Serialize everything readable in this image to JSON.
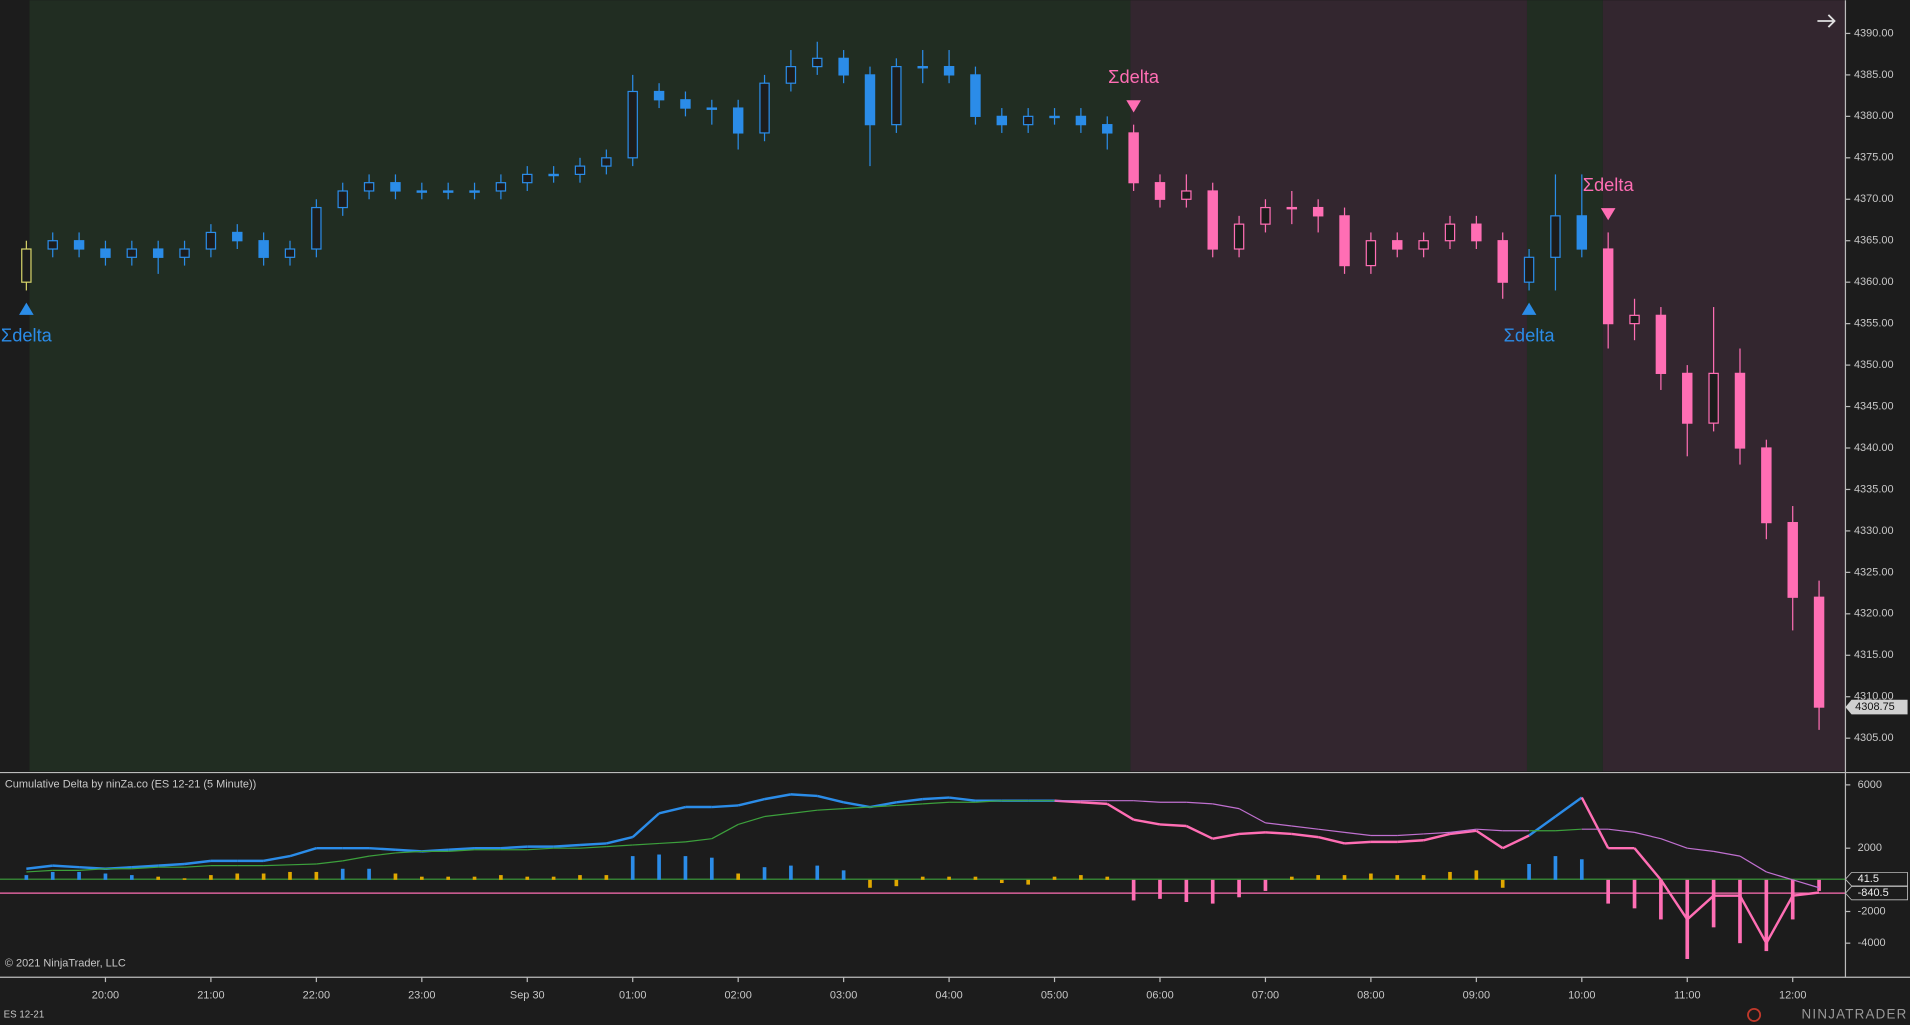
{
  "chart_data": [
    {
      "type": "candlestick",
      "x": [
        19.25,
        19.5,
        19.75,
        20,
        20.25,
        20.5,
        20.75,
        21,
        21.25,
        21.5,
        21.75,
        22,
        22.25,
        22.5,
        22.75,
        23,
        23.25,
        23.5,
        23.75,
        24,
        24.25,
        24.5,
        24.75,
        25,
        25.25,
        25.5,
        25.75,
        26,
        26.25,
        26.5,
        26.75,
        27,
        27.25,
        27.5,
        27.75,
        28,
        28.25,
        28.5,
        28.75,
        29,
        29.25,
        29.5,
        29.75,
        30,
        30.25,
        30.5,
        30.75,
        31,
        31.25,
        31.5,
        31.75,
        32,
        32.25,
        32.5,
        32.75,
        33,
        33.25,
        33.5,
        33.75,
        34,
        34.25,
        34.5,
        34.75,
        35,
        35.25,
        35.5,
        35.75,
        36,
        36.25
      ],
      "open": [
        4360,
        4364,
        4365,
        4364,
        4363,
        4364,
        4363,
        4364,
        4366,
        4365,
        4363,
        4364,
        4369,
        4371,
        4372,
        4371,
        4371,
        4371,
        4371,
        4372,
        4373,
        4373,
        4374,
        4375,
        4383,
        4382,
        4381,
        4381,
        4378,
        4384,
        4386,
        4387,
        4385,
        4379,
        4386,
        4386,
        4385,
        4380,
        4379,
        4380,
        4380,
        4379,
        4378,
        4372,
        4370,
        4371,
        4364,
        4367,
        4369,
        4369,
        4368,
        4362,
        4365,
        4364,
        4365,
        4367,
        4365,
        4360,
        4363,
        4368,
        4364,
        4355,
        4356,
        4349,
        4343,
        4349,
        4340,
        4331,
        4322
      ],
      "high": [
        4365,
        4366,
        4366,
        4365,
        4365,
        4365,
        4365,
        4367,
        4367,
        4366,
        4365,
        4370,
        4372,
        4373,
        4373,
        4372,
        4372,
        4372,
        4373,
        4374,
        4374,
        4375,
        4376,
        4385,
        4384,
        4383,
        4382,
        4382,
        4385,
        4388,
        4389,
        4388,
        4386,
        4387,
        4388,
        4388,
        4386,
        4381,
        4381,
        4381,
        4381,
        4380,
        4379,
        4373,
        4373,
        4372,
        4368,
        4370,
        4371,
        4370,
        4369,
        4366,
        4366,
        4366,
        4368,
        4368,
        4366,
        4364,
        4373,
        4373,
        4366,
        4358,
        4357,
        4350,
        4357,
        4352,
        4341,
        4333,
        4324
      ],
      "low": [
        4359,
        4363,
        4363,
        4362,
        4362,
        4361,
        4362,
        4363,
        4364,
        4362,
        4362,
        4363,
        4368,
        4370,
        4370,
        4370,
        4370,
        4370,
        4370,
        4371,
        4372,
        4372,
        4373,
        4374,
        4381,
        4380,
        4379,
        4376,
        4377,
        4383,
        4385,
        4384,
        4374,
        4378,
        4384,
        4384,
        4379,
        4378,
        4378,
        4379,
        4378,
        4376,
        4371,
        4369,
        4369,
        4363,
        4363,
        4366,
        4367,
        4366,
        4361,
        4361,
        4363,
        4363,
        4364,
        4364,
        4358,
        4359,
        4359,
        4363,
        4352,
        4353,
        4347,
        4339,
        4342,
        4338,
        4329,
        4318,
        4306
      ],
      "close": [
        4364,
        4365,
        4364,
        4363,
        4364,
        4363,
        4364,
        4366,
        4365,
        4363,
        4364,
        4369,
        4371,
        4372,
        4371,
        4371,
        4371,
        4371,
        4372,
        4373,
        4373,
        4374,
        4375,
        4383,
        4382,
        4381,
        4381,
        4378,
        4384,
        4386,
        4387,
        4385,
        4379,
        4386,
        4386,
        4385,
        4380,
        4379,
        4380,
        4380,
        4379,
        4378,
        4372,
        4370,
        4371,
        4364,
        4367,
        4369,
        4369,
        4368,
        4362,
        4365,
        4364,
        4365,
        4367,
        4365,
        4360,
        4363,
        4368,
        4364,
        4355,
        4356,
        4349,
        4343,
        4349,
        4340,
        4331,
        4322,
        4308.75
      ],
      "bar_color": "#d6d36a",
      "xlim": [
        19,
        36.5
      ],
      "ylim": [
        4301,
        4394
      ],
      "yticks": [
        {
          "value": 4390,
          "label": "4390.00"
        },
        {
          "value": 4385,
          "label": "4385.00"
        },
        {
          "value": 4380,
          "label": "4380.00"
        },
        {
          "value": 4375,
          "label": "4375.00"
        },
        {
          "value": 4370,
          "label": "4370.00"
        },
        {
          "value": 4365,
          "label": "4365.00"
        },
        {
          "value": 4360,
          "label": "4360.00"
        },
        {
          "value": 4355,
          "label": "4355.00"
        },
        {
          "value": 4350,
          "label": "4350.00"
        },
        {
          "value": 4345,
          "label": "4345.00"
        },
        {
          "value": 4340,
          "label": "4340.00"
        },
        {
          "value": 4335,
          "label": "4335.00"
        },
        {
          "value": 4330,
          "label": "4330.00"
        },
        {
          "value": 4325,
          "label": "4325.00"
        },
        {
          "value": 4320,
          "label": "4320.00"
        },
        {
          "value": 4315,
          "label": "4315.00"
        },
        {
          "value": 4310,
          "label": "4310.00"
        },
        {
          "value": 4305,
          "label": "4305.00"
        }
      ],
      "regions": [
        {
          "from": 19.28,
          "to": 29.72,
          "color": "#212d22",
          "bar_color": "#2b8ce8"
        },
        {
          "from": 29.72,
          "to": 33.48,
          "color": "#33262f",
          "bar_color": "#ff6eb4"
        },
        {
          "from": 33.48,
          "to": 34.2,
          "color": "#212d22",
          "bar_color": "#2b8ce8"
        },
        {
          "from": 34.2,
          "to": 36.5,
          "color": "#33262f",
          "bar_color": "#ff6eb4"
        }
      ],
      "signals": [
        {
          "x": 19.25,
          "label": "Σdelta",
          "direction": "up",
          "color": "#2b8ce8"
        },
        {
          "x": 29.75,
          "label": "Σdelta",
          "direction": "down",
          "color": "#ff6eb4"
        },
        {
          "x": 33.5,
          "label": "Σdelta",
          "direction": "up",
          "color": "#2b8ce8"
        },
        {
          "x": 34.25,
          "label": "Σdelta",
          "direction": "down",
          "color": "#ff6eb4"
        }
      ]
    },
    {
      "type": "line",
      "title": "Cumulative Delta by ninZa.co (ES 12-21 (5 Minute))",
      "x": [
        19.25,
        19.5,
        19.75,
        20,
        20.25,
        20.5,
        20.75,
        21,
        21.25,
        21.5,
        21.75,
        22,
        22.25,
        22.5,
        22.75,
        23,
        23.25,
        23.5,
        23.75,
        24,
        24.25,
        24.5,
        24.75,
        25,
        25.25,
        25.5,
        25.75,
        26,
        26.25,
        26.5,
        26.75,
        27,
        27.25,
        27.5,
        27.75,
        28,
        28.25,
        28.5,
        28.75,
        29,
        29.25,
        29.5,
        29.75,
        30,
        30.25,
        30.5,
        30.75,
        31,
        31.25,
        31.5,
        31.75,
        32,
        32.25,
        32.5,
        32.75,
        33,
        33.25,
        33.5,
        33.75,
        34,
        34.25,
        34.5,
        34.75,
        35,
        35.25,
        35.5,
        35.75,
        36,
        36.25
      ],
      "series": [
        {
          "type": "line",
          "color": "#2b8ce8",
          "color_below": "#ff6eb4",
          "values": [
            700,
            900,
            800,
            700,
            800,
            900,
            1000,
            1200,
            1200,
            1200,
            1500,
            2000,
            2000,
            2000,
            1900,
            1800,
            1900,
            2000,
            2000,
            2100,
            2100,
            2200,
            2300,
            2700,
            4200,
            4600,
            4600,
            4700,
            5100,
            5400,
            5300,
            4900,
            4600,
            4900,
            5100,
            5200,
            5000,
            5000,
            5000,
            5000,
            4900,
            4800,
            3800,
            3500,
            3400,
            2600,
            2900,
            3000,
            2900,
            2700,
            2300,
            2400,
            2400,
            2500,
            2900,
            3100,
            2000,
            2800,
            4000,
            5200,
            2000,
            2000,
            0,
            -2500,
            -1000,
            -1000,
            -4000,
            -1000,
            -800
          ]
        },
        {
          "type": "line",
          "color": "#3ca03c",
          "color_below": "#c070d0",
          "values": [
            500,
            600,
            600,
            700,
            700,
            800,
            800,
            900,
            900,
            900,
            950,
            1000,
            1200,
            1500,
            1700,
            1800,
            1800,
            1900,
            1900,
            1900,
            2000,
            2000,
            2100,
            2200,
            2300,
            2400,
            2600,
            3500,
            4000,
            4200,
            4400,
            4500,
            4600,
            4700,
            4800,
            4900,
            4900,
            5000,
            5000,
            5000,
            5000,
            5000,
            5000,
            4900,
            4900,
            4800,
            4500,
            3600,
            3400,
            3200,
            3000,
            2800,
            2800,
            2900,
            3000,
            3200,
            3100,
            3100,
            3100,
            3200,
            3200,
            3000,
            2600,
            2000,
            1800,
            1500,
            500,
            0,
            -500
          ]
        },
        {
          "type": "bar",
          "values": [
            300,
            500,
            500,
            400,
            300,
            200,
            100,
            300,
            400,
            400,
            500,
            500,
            700,
            700,
            400,
            200,
            200,
            200,
            300,
            200,
            200,
            300,
            300,
            1500,
            1600,
            1500,
            1400,
            400,
            800,
            900,
            900,
            600,
            -500,
            -400,
            200,
            200,
            200,
            -200,
            -300,
            200,
            300,
            200,
            -1300,
            -1200,
            -1400,
            -1500,
            -1100,
            -700,
            200,
            300,
            300,
            400,
            300,
            300,
            500,
            600,
            -500,
            1000,
            1500,
            1300,
            -1500,
            -1800,
            -2500,
            -5000,
            -3000,
            -4000,
            -4500,
            -2500,
            -700
          ],
          "colors": [
            "#2b8ce8",
            "#2b8ce8",
            "#2b8ce8",
            "#2b8ce8",
            "#2b8ce8",
            "#e0a800",
            "#e0a800",
            "#e0a800",
            "#e0a800",
            "#e0a800",
            "#e0a800",
            "#e0a800",
            "#2b8ce8",
            "#2b8ce8",
            "#e0a800",
            "#e0a800",
            "#e0a800",
            "#e0a800",
            "#e0a800",
            "#e0a800",
            "#e0a800",
            "#e0a800",
            "#e0a800",
            "#2b8ce8",
            "#2b8ce8",
            "#2b8ce8",
            "#2b8ce8",
            "#e0a800",
            "#2b8ce8",
            "#2b8ce8",
            "#2b8ce8",
            "#2b8ce8",
            "#e0a800",
            "#e0a800",
            "#e0a800",
            "#e0a800",
            "#e0a800",
            "#e0a800",
            "#e0a800",
            "#e0a800",
            "#e0a800",
            "#e0a800",
            "#ff6eb4",
            "#ff6eb4",
            "#ff6eb4",
            "#ff6eb4",
            "#ff6eb4",
            "#ff6eb4",
            "#e0a800",
            "#e0a800",
            "#e0a800",
            "#e0a800",
            "#e0a800",
            "#e0a800",
            "#e0a800",
            "#e0a800",
            "#e0a800",
            "#2b8ce8",
            "#2b8ce8",
            "#2b8ce8",
            "#ff6eb4",
            "#ff6eb4",
            "#ff6eb4",
            "#ff6eb4",
            "#ff6eb4",
            "#ff6eb4",
            "#ff6eb4",
            "#ff6eb4",
            "#ff6eb4"
          ]
        }
      ],
      "reference_lines": [
        {
          "value": 41.5,
          "color": "#3ca03c"
        },
        {
          "value": -840.5,
          "color": "#ff6eb4"
        }
      ],
      "xlim": [
        19,
        36.5
      ],
      "ylim": [
        -6150,
        6700
      ],
      "yticks": [
        6000,
        2000,
        -2000,
        -4000
      ],
      "xticks": [
        {
          "value": 20,
          "label": "20:00"
        },
        {
          "value": 21,
          "label": "21:00"
        },
        {
          "value": 22,
          "label": "22:00"
        },
        {
          "value": 23,
          "label": "23:00"
        },
        {
          "value": 24,
          "label": "Sep 30"
        },
        {
          "value": 25,
          "label": "01:00"
        },
        {
          "value": 26,
          "label": "02:00"
        },
        {
          "value": 27,
          "label": "03:00"
        },
        {
          "value": 28,
          "label": "04:00"
        },
        {
          "value": 29,
          "label": "05:00"
        },
        {
          "value": 30,
          "label": "06:00"
        },
        {
          "value": 31,
          "label": "07:00"
        },
        {
          "value": 32,
          "label": "08:00"
        },
        {
          "value": 33,
          "label": "09:00"
        },
        {
          "value": 34,
          "label": "10:00"
        },
        {
          "value": 35,
          "label": "11:00"
        },
        {
          "value": 36,
          "label": "12:00"
        }
      ]
    }
  ],
  "footer": {
    "copyright": "© 2021 NinjaTrader, LLC",
    "instrument": "ES 12-21",
    "logo": "NINJATRADER"
  }
}
